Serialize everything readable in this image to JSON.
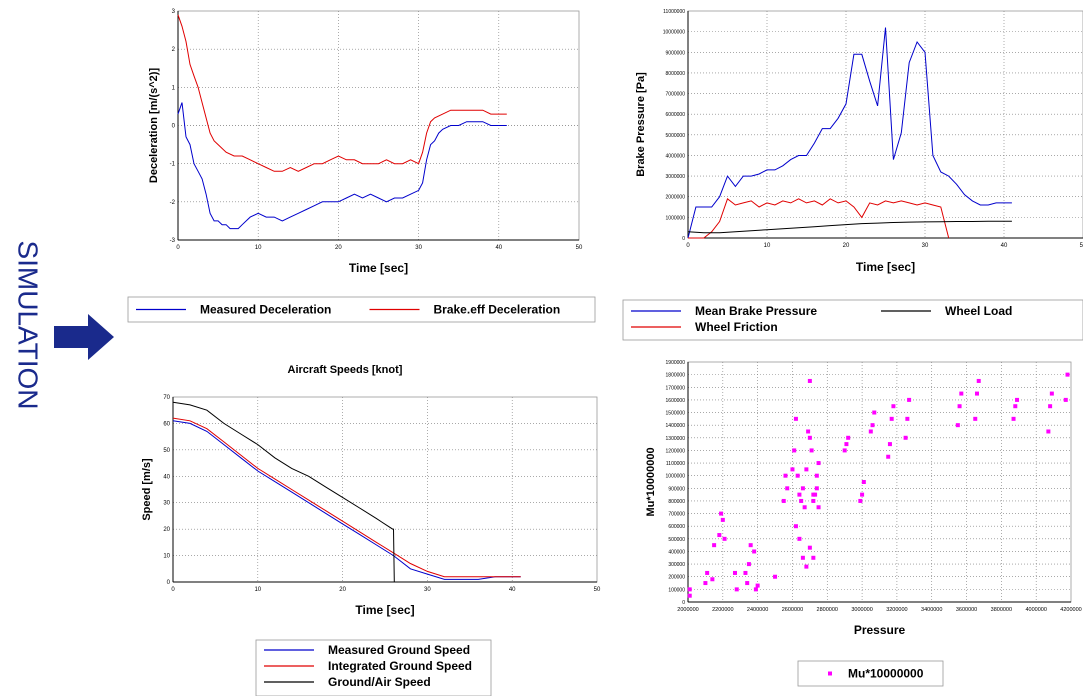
{
  "side_label": "SIMULATION",
  "arrow_icon": "right-arrow-icon",
  "colors": {
    "blue": "#0000cc",
    "red": "#e00000",
    "black": "#000000",
    "magenta": "#ff00ff",
    "navy": "#1a2a8c"
  },
  "chart_data": [
    {
      "id": "deceleration",
      "type": "line",
      "title": "",
      "xlabel": "Time [sec]",
      "ylabel": "Deceleration [m/(s^2)]",
      "xlim": [
        0,
        50
      ],
      "ylim": [
        -3,
        3
      ],
      "xticks": [
        "0",
        "10",
        "20",
        "30",
        "40",
        "50"
      ],
      "yticks": [
        "3",
        "2",
        "1",
        "0",
        "-1",
        "-2",
        "-3"
      ],
      "grid": true,
      "legend": "bottom",
      "series": [
        {
          "name": "Measured Deceleration",
          "color": "#0000cc",
          "x": [
            0,
            0.5,
            1,
            1.5,
            2,
            2.5,
            3,
            3.5,
            4,
            4.5,
            5,
            5.5,
            6,
            6.5,
            7,
            7.5,
            8,
            9,
            10,
            11,
            12,
            13,
            14,
            15,
            16,
            17,
            18,
            19,
            20,
            21,
            22,
            23,
            24,
            25,
            26,
            27,
            28,
            29,
            30,
            30.5,
            31,
            31.5,
            32,
            32.5,
            33,
            34,
            35,
            36,
            37,
            38,
            39,
            40,
            41
          ],
          "y": [
            0.3,
            0.6,
            -0.3,
            -0.5,
            -1.0,
            -1.2,
            -1.4,
            -1.8,
            -2.3,
            -2.5,
            -2.5,
            -2.6,
            -2.6,
            -2.7,
            -2.7,
            -2.7,
            -2.6,
            -2.4,
            -2.3,
            -2.4,
            -2.4,
            -2.5,
            -2.4,
            -2.3,
            -2.2,
            -2.1,
            -2.0,
            -2.0,
            -2.0,
            -1.9,
            -1.8,
            -1.9,
            -1.8,
            -1.9,
            -2.0,
            -1.9,
            -1.9,
            -1.8,
            -1.7,
            -1.5,
            -0.9,
            -0.5,
            -0.4,
            -0.2,
            -0.1,
            0.0,
            0.0,
            0.1,
            0.1,
            0.1,
            0.0,
            0.0,
            0.0
          ]
        },
        {
          "name": "Brake.eff Deceleration",
          "color": "#e00000",
          "x": [
            0,
            0.5,
            1,
            1.5,
            2,
            2.5,
            3,
            3.5,
            4,
            4.5,
            5,
            6,
            7,
            8,
            9,
            10,
            11,
            12,
            13,
            14,
            15,
            16,
            17,
            18,
            19,
            20,
            21,
            22,
            23,
            24,
            25,
            26,
            27,
            28,
            29,
            30,
            30.5,
            31,
            31.5,
            32,
            33,
            34,
            35,
            36,
            37,
            38,
            39,
            40,
            41
          ],
          "y": [
            2.9,
            2.6,
            2.2,
            1.6,
            1.3,
            1.0,
            0.6,
            0.2,
            -0.2,
            -0.4,
            -0.5,
            -0.7,
            -0.8,
            -0.8,
            -0.9,
            -1.0,
            -1.1,
            -1.2,
            -1.2,
            -1.1,
            -1.2,
            -1.1,
            -1.0,
            -1.0,
            -0.9,
            -0.8,
            -0.9,
            -0.9,
            -1.0,
            -1.0,
            -1.0,
            -0.9,
            -1.0,
            -1.0,
            -0.9,
            -1.0,
            -0.7,
            -0.2,
            0.1,
            0.2,
            0.3,
            0.4,
            0.4,
            0.4,
            0.4,
            0.4,
            0.3,
            0.3,
            0.3
          ]
        }
      ]
    },
    {
      "id": "brake-pressure",
      "type": "line",
      "title": "",
      "xlabel": "Time [sec]",
      "ylabel": "Brake Pressure [Pa]",
      "xlim": [
        0,
        50
      ],
      "ylim": [
        0,
        11000000
      ],
      "xticks": [
        "0",
        "10",
        "20",
        "30",
        "40",
        "50"
      ],
      "yticks": [
        "11000000",
        "10000000",
        "9000000",
        "8000000",
        "7000000",
        "6000000",
        "5000000",
        "4000000",
        "3000000",
        "2000000",
        "1000000",
        "0"
      ],
      "grid": true,
      "legend": "bottom",
      "series": [
        {
          "name": "Mean Brake Pressure",
          "color": "#0000cc",
          "x": [
            0,
            1,
            2,
            3,
            4,
            5,
            6,
            7,
            8,
            9,
            10,
            11,
            12,
            13,
            14,
            15,
            16,
            17,
            18,
            19,
            20,
            21,
            22,
            23,
            24,
            25,
            26,
            27,
            28,
            29,
            30,
            31,
            32,
            33,
            34,
            35,
            36,
            37,
            38,
            39,
            40,
            41
          ],
          "y": [
            0,
            1500000,
            1500000,
            1500000,
            2000000,
            3000000,
            2500000,
            3000000,
            3000000,
            3100000,
            3300000,
            3300000,
            3500000,
            3800000,
            4000000,
            4000000,
            4600000,
            5300000,
            5300000,
            5800000,
            6500000,
            8900000,
            8900000,
            7600000,
            6400000,
            10200000,
            3800000,
            5100000,
            8500000,
            9500000,
            9000000,
            4000000,
            3200000,
            3000000,
            2600000,
            2100000,
            1800000,
            1600000,
            1600000,
            1700000,
            1700000,
            1700000
          ]
        },
        {
          "name": "Wheel Friction",
          "color": "#e00000",
          "x": [
            0,
            1,
            2,
            3,
            4,
            5,
            6,
            7,
            8,
            9,
            10,
            11,
            12,
            13,
            14,
            15,
            16,
            17,
            18,
            19,
            20,
            21,
            22,
            23,
            24,
            25,
            26,
            27,
            28,
            29,
            30,
            31,
            32,
            33
          ],
          "y": [
            0,
            0,
            0,
            300000,
            800000,
            1900000,
            1600000,
            1700000,
            1800000,
            1500000,
            1700000,
            1600000,
            1800000,
            1700000,
            1900000,
            1700000,
            1800000,
            1600000,
            1900000,
            1700000,
            1800000,
            1500000,
            1000000,
            1700000,
            1600000,
            1800000,
            1700000,
            1800000,
            1700000,
            1600000,
            1700000,
            1600000,
            1500000,
            0
          ]
        },
        {
          "name": "Wheel Load",
          "color": "#000000",
          "x": [
            0,
            2,
            4,
            6,
            8,
            10,
            12,
            14,
            16,
            18,
            20,
            22,
            24,
            26,
            28,
            30,
            32,
            34,
            36,
            38,
            40,
            41
          ],
          "y": [
            300000,
            250000,
            250000,
            300000,
            350000,
            400000,
            450000,
            500000,
            550000,
            600000,
            650000,
            700000,
            720000,
            750000,
            770000,
            780000,
            790000,
            800000,
            800000,
            810000,
            810000,
            810000
          ]
        }
      ]
    },
    {
      "id": "aircraft-speeds",
      "type": "line",
      "title": "Aircraft Speeds [knot]",
      "xlabel": "Time [sec]",
      "ylabel": "Speed [m/s]",
      "xlim": [
        0,
        50
      ],
      "ylim": [
        0,
        70
      ],
      "xticks": [
        "0",
        "10",
        "20",
        "30",
        "40",
        "50"
      ],
      "yticks": [
        "70",
        "60",
        "50",
        "40",
        "30",
        "20",
        "10",
        "0"
      ],
      "grid": true,
      "legend": "bottom",
      "series": [
        {
          "name": "Measured Ground Speed",
          "color": "#0000cc",
          "x": [
            0,
            2,
            4,
            6,
            8,
            10,
            12,
            14,
            16,
            18,
            20,
            22,
            24,
            26,
            28,
            30,
            32,
            34,
            36,
            38,
            40,
            41
          ],
          "y": [
            61,
            60,
            57,
            52,
            47,
            42,
            38,
            34,
            30,
            26,
            22,
            18,
            14,
            10,
            5,
            3,
            1,
            1,
            1,
            2,
            2,
            2
          ]
        },
        {
          "name": "Integrated Ground Speed",
          "color": "#e00000",
          "x": [
            0,
            2,
            4,
            6,
            8,
            10,
            12,
            14,
            16,
            18,
            20,
            22,
            24,
            26,
            28,
            30,
            32,
            34,
            36,
            38,
            40,
            41
          ],
          "y": [
            62,
            61,
            58,
            53,
            48,
            43,
            39,
            35,
            31,
            27,
            23,
            19,
            15,
            11,
            7,
            4,
            2,
            2,
            2,
            2,
            2,
            2
          ]
        },
        {
          "name": "Ground/Air Speed",
          "color": "#000000",
          "x": [
            0,
            2,
            4,
            6,
            8,
            10,
            12,
            14,
            16,
            18,
            20,
            22,
            24,
            25.9,
            26,
            26.1,
            41
          ],
          "y": [
            68,
            67,
            65,
            60,
            56,
            52,
            47,
            43,
            40,
            36,
            32,
            28,
            24,
            20,
            20,
            0,
            0
          ]
        }
      ]
    },
    {
      "id": "mu-pressure",
      "type": "scatter",
      "title": "",
      "xlabel": "Pressure",
      "ylabel": "Mu*10000000",
      "xlim": [
        2000000,
        4200000
      ],
      "ylim": [
        0,
        1900000
      ],
      "xticks": [
        "2000000",
        "2200000",
        "2400000",
        "2600000",
        "2800000",
        "3000000",
        "3200000",
        "3400000",
        "3600000",
        "3800000",
        "4000000",
        "4200000"
      ],
      "yticks": [
        "1900000",
        "1800000",
        "1700000",
        "1600000",
        "1500000",
        "1400000",
        "1300000",
        "1200000",
        "1100000",
        "1000000",
        "900000",
        "800000",
        "700000",
        "600000",
        "500000",
        "400000",
        "300000",
        "200000",
        "100000",
        "0"
      ],
      "grid": true,
      "legend": "bottom",
      "series": [
        {
          "name": "Mu*10000000",
          "color": "#ff00ff",
          "x": [
            2010000,
            2010000,
            2100000,
            2110000,
            2140000,
            2150000,
            2180000,
            2190000,
            2200000,
            2210000,
            2270000,
            2280000,
            2330000,
            2340000,
            2350000,
            2360000,
            2380000,
            2390000,
            2400000,
            2500000,
            2550000,
            2560000,
            2570000,
            2600000,
            2610000,
            2620000,
            2630000,
            2640000,
            2650000,
            2660000,
            2670000,
            2680000,
            2690000,
            2700000,
            2710000,
            2720000,
            2730000,
            2740000,
            2750000,
            2620000,
            2640000,
            2660000,
            2680000,
            2700000,
            2720000,
            2740000,
            2750000,
            2700000,
            2720000,
            2900000,
            2910000,
            2920000,
            2990000,
            3000000,
            3010000,
            3050000,
            3060000,
            3070000,
            3150000,
            3160000,
            3170000,
            3180000,
            3250000,
            3260000,
            3270000,
            3550000,
            3560000,
            3570000,
            3650000,
            3660000,
            3670000,
            3870000,
            3880000,
            3890000,
            4070000,
            4080000,
            4090000,
            4170000,
            4180000
          ],
          "y": [
            50000,
            100000,
            150000,
            230000,
            180000,
            450000,
            530000,
            700000,
            650000,
            500000,
            230000,
            100000,
            230000,
            150000,
            300000,
            450000,
            400000,
            100000,
            130000,
            200000,
            800000,
            1000000,
            900000,
            1050000,
            1200000,
            1450000,
            1000000,
            850000,
            800000,
            900000,
            750000,
            1050000,
            1350000,
            1300000,
            1200000,
            800000,
            850000,
            1000000,
            1100000,
            600000,
            500000,
            350000,
            280000,
            430000,
            350000,
            900000,
            750000,
            1750000,
            850000,
            1200000,
            1250000,
            1300000,
            800000,
            850000,
            950000,
            1350000,
            1400000,
            1500000,
            1150000,
            1250000,
            1450000,
            1550000,
            1300000,
            1450000,
            1600000,
            1400000,
            1550000,
            1650000,
            1450000,
            1650000,
            1750000,
            1450000,
            1550000,
            1600000,
            1350000,
            1550000,
            1650000,
            1600000,
            1800000
          ]
        }
      ]
    }
  ]
}
